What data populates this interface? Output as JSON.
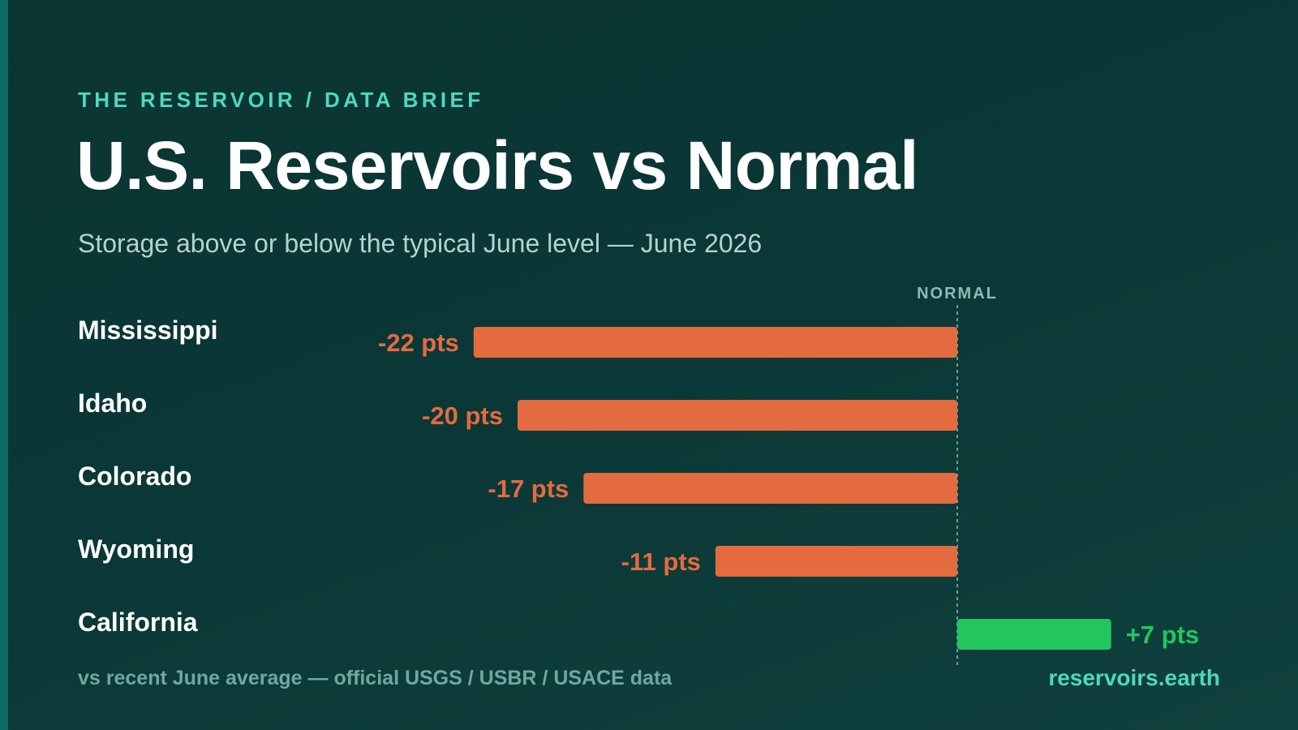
{
  "header": {
    "eyebrow": "THE RESERVOIR / DATA BRIEF",
    "title": "U.S. Reservoirs vs Normal",
    "subtitle": "Storage above or below the typical June level — June 2026"
  },
  "footer": {
    "source": "vs recent June average — official USGS / USBR / USACE data",
    "brand": "reservoirs.earth"
  },
  "colors": {
    "below_normal": "#e46a40",
    "above_normal": "#22c55e",
    "accent": "#4fd8bd",
    "background": "#0b3533"
  },
  "chart_data": {
    "type": "bar",
    "orientation": "horizontal",
    "baseline_label": "NORMAL",
    "categories": [
      "Mississippi",
      "Idaho",
      "Colorado",
      "Wyoming",
      "California"
    ],
    "values": [
      -22,
      -20,
      -17,
      -11,
      7
    ],
    "value_labels": [
      "-22 pts",
      "-20 pts",
      "-17 pts",
      "-11 pts",
      "+7 pts"
    ],
    "xlim": [
      -22,
      7
    ],
    "grid": false
  }
}
